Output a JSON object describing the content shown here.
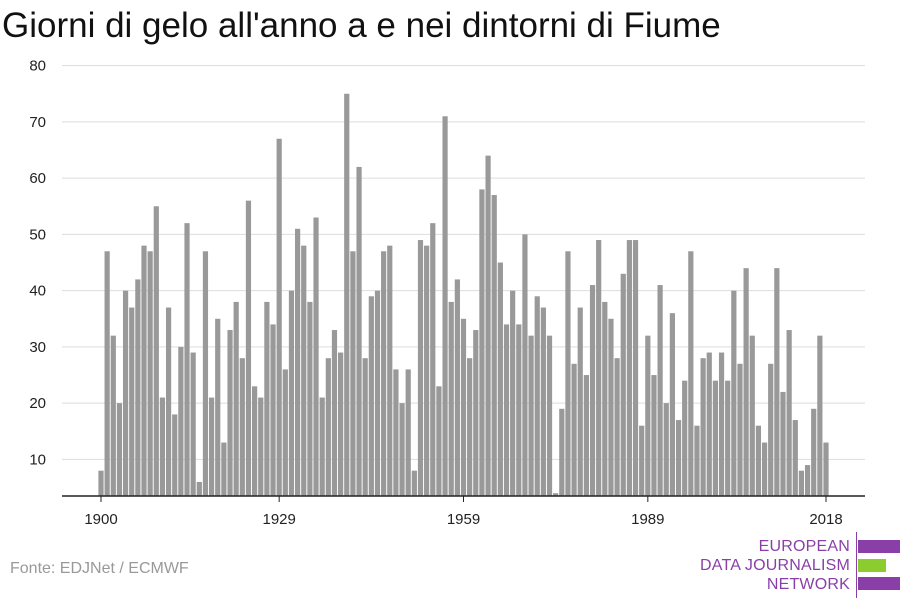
{
  "title": "Giorni di gelo all'anno a e nei dintorni di Fiume",
  "source": "Fonte: EDJNet / ECMWF",
  "logo": {
    "lines": [
      "EUROPEAN",
      "DATA JOURNALISM",
      "NETWORK"
    ],
    "colors": {
      "primary": "#8a3fa8",
      "accent": "#8ccc2e"
    }
  },
  "colors": {
    "bar": "#999999",
    "grid": "#dddddd",
    "axis": "#222222",
    "text": "#222222"
  },
  "chart_data": {
    "type": "bar",
    "title": "Giorni di gelo all'anno a e nei dintorni di Fiume",
    "xlabel": "",
    "ylabel": "",
    "x_range": [
      1900,
      2018
    ],
    "ylim": [
      3.5,
      81
    ],
    "y_ticks": [
      10,
      20,
      30,
      40,
      50,
      60,
      70,
      80
    ],
    "x_tick_labels": [
      "1900",
      "1929",
      "1959",
      "1989",
      "2018"
    ],
    "grid": true,
    "x": [
      1900,
      1901,
      1902,
      1903,
      1904,
      1905,
      1906,
      1907,
      1908,
      1909,
      1910,
      1911,
      1912,
      1913,
      1914,
      1915,
      1916,
      1917,
      1918,
      1919,
      1920,
      1921,
      1922,
      1923,
      1924,
      1925,
      1926,
      1927,
      1928,
      1929,
      1930,
      1931,
      1932,
      1933,
      1934,
      1935,
      1936,
      1937,
      1938,
      1939,
      1940,
      1941,
      1942,
      1943,
      1944,
      1945,
      1946,
      1947,
      1948,
      1949,
      1950,
      1951,
      1952,
      1953,
      1954,
      1955,
      1956,
      1957,
      1958,
      1959,
      1960,
      1961,
      1962,
      1963,
      1964,
      1965,
      1966,
      1967,
      1968,
      1969,
      1970,
      1971,
      1972,
      1973,
      1974,
      1975,
      1976,
      1977,
      1978,
      1979,
      1980,
      1981,
      1982,
      1983,
      1984,
      1985,
      1986,
      1987,
      1988,
      1989,
      1990,
      1991,
      1992,
      1993,
      1994,
      1995,
      1996,
      1997,
      1998,
      1999,
      2000,
      2001,
      2002,
      2003,
      2004,
      2005,
      2006,
      2007,
      2008,
      2009,
      2010,
      2011,
      2012,
      2013,
      2014,
      2015,
      2016,
      2017,
      2018
    ],
    "values": [
      8,
      47,
      32,
      20,
      40,
      37,
      42,
      48,
      47,
      55,
      21,
      37,
      18,
      30,
      52,
      29,
      6,
      47,
      21,
      35,
      13,
      33,
      38,
      28,
      56,
      23,
      21,
      38,
      34,
      67,
      26,
      40,
      51,
      48,
      38,
      53,
      21,
      28,
      33,
      29,
      75,
      47,
      62,
      28,
      39,
      40,
      47,
      48,
      26,
      20,
      26,
      8,
      49,
      48,
      52,
      23,
      71,
      38,
      42,
      35,
      28,
      33,
      58,
      64,
      57,
      45,
      34,
      40,
      34,
      50,
      32,
      39,
      37,
      32,
      4,
      19,
      47,
      27,
      37,
      25,
      41,
      49,
      38,
      35,
      28,
      43,
      49,
      49,
      16,
      32,
      25,
      41,
      20,
      36,
      17,
      24,
      47,
      16,
      28,
      29,
      24,
      29,
      24,
      40,
      27,
      44,
      32,
      16,
      13,
      27,
      44,
      22,
      33,
      17,
      8,
      9,
      19,
      32,
      13
    ]
  }
}
